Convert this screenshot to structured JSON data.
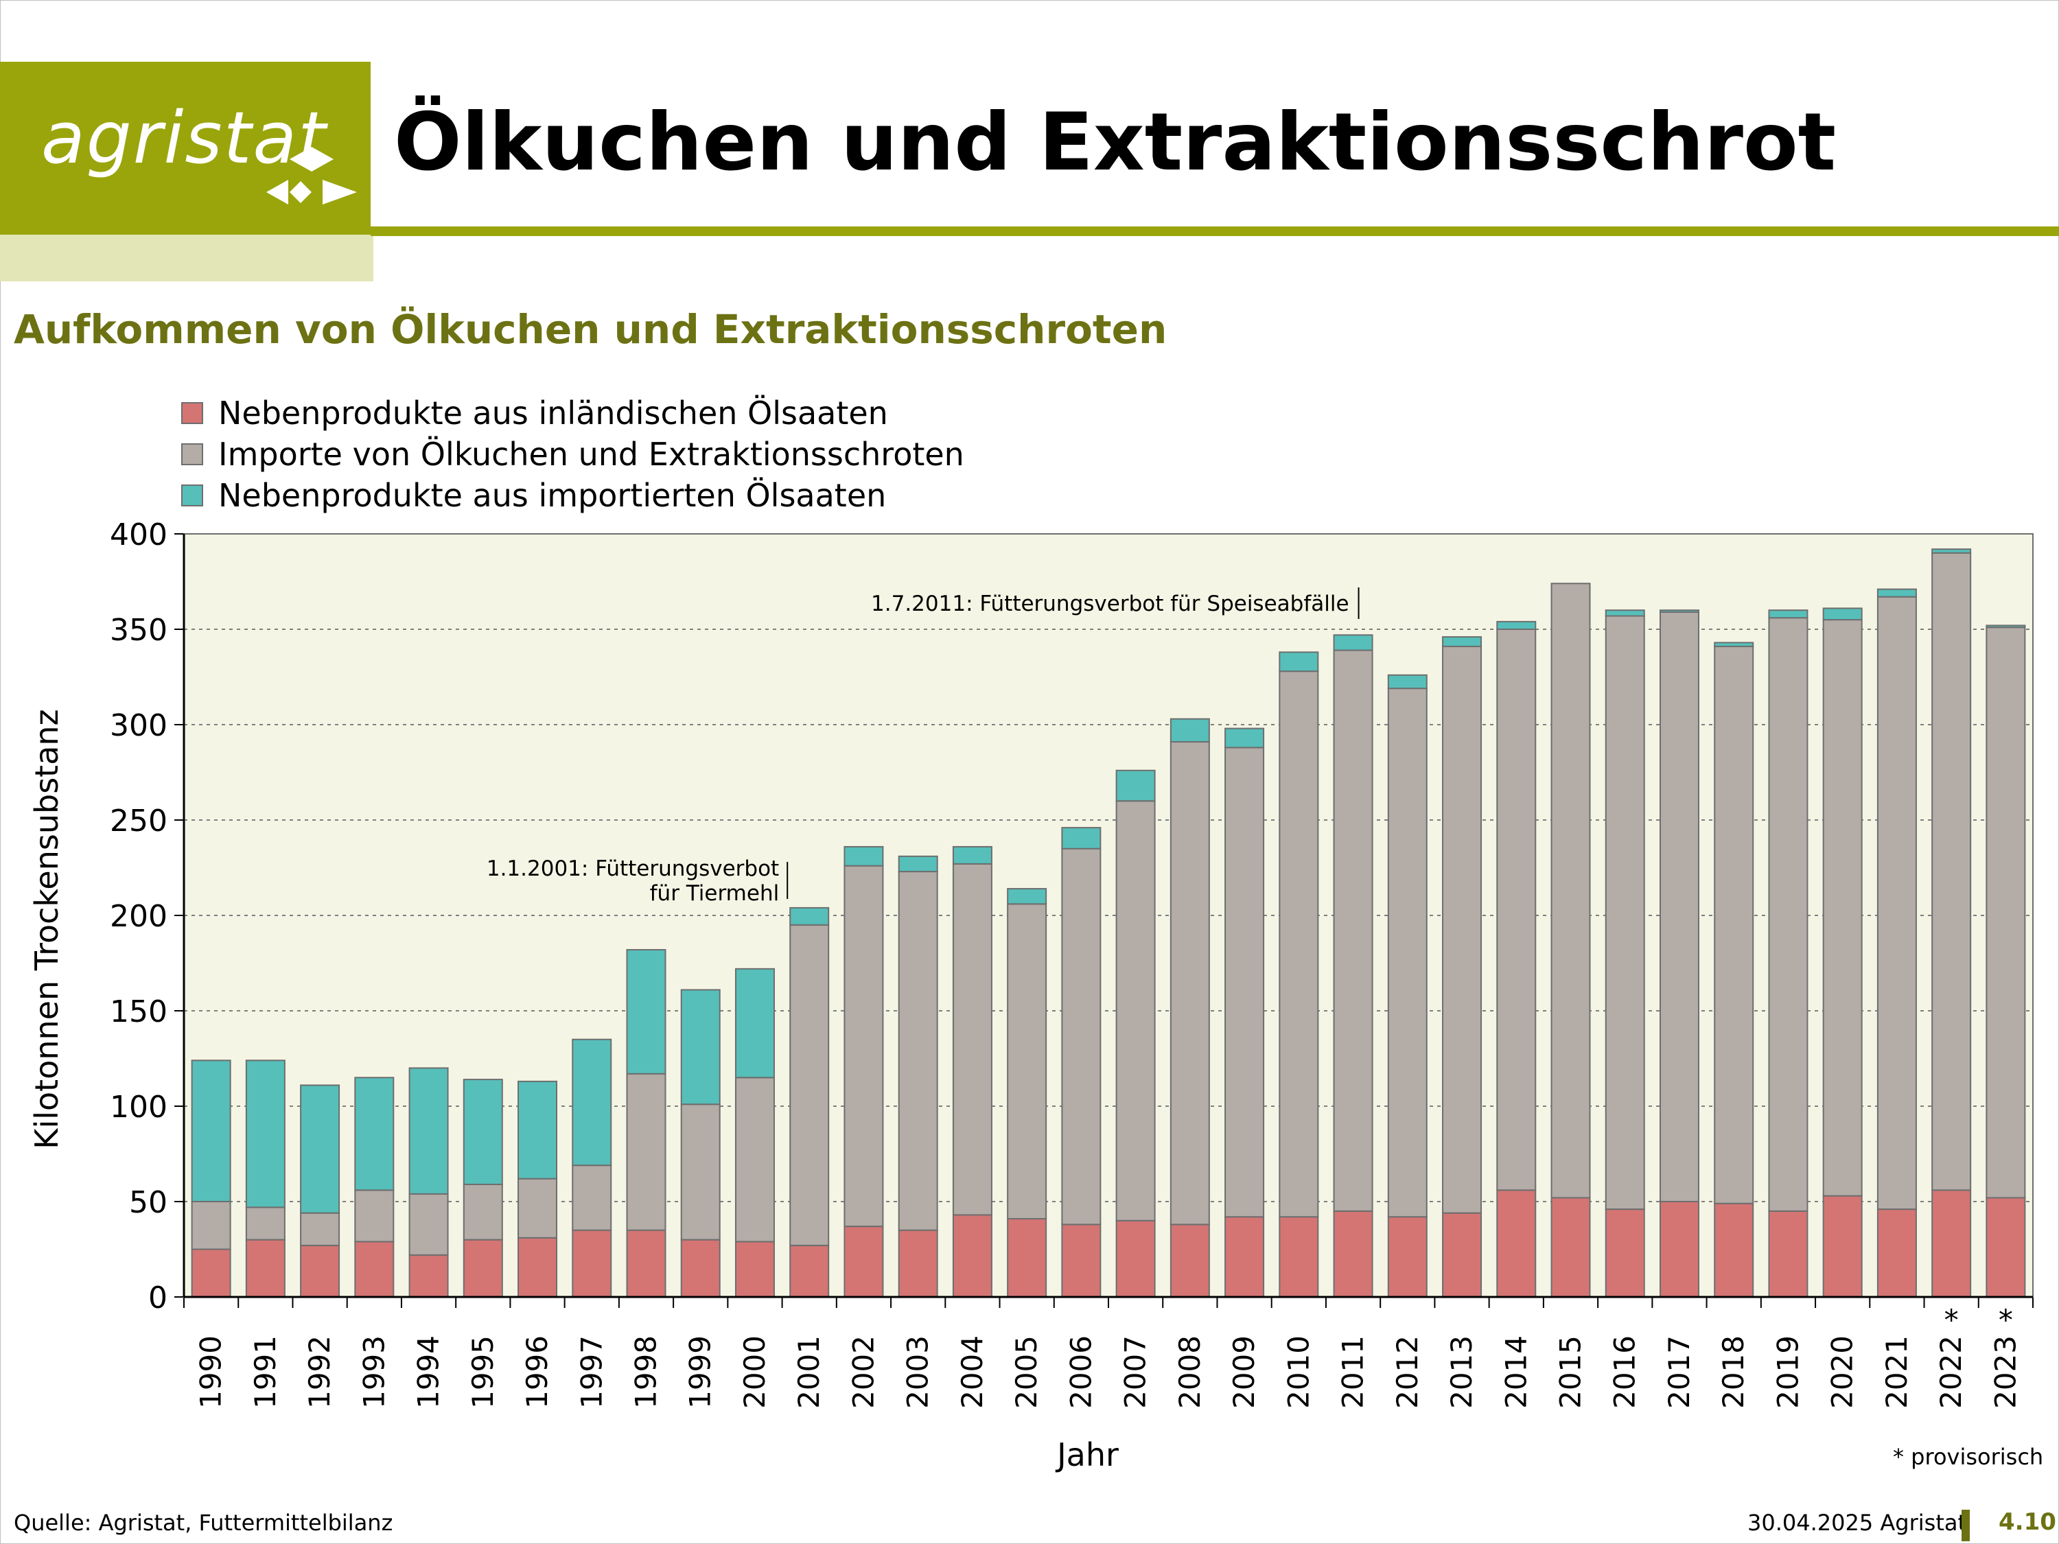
{
  "header": {
    "logo_text": "agristat",
    "title": "Ölkuchen und Extraktionsschrot"
  },
  "subtitle": "Aufkommen von Ölkuchen und Extraktionsschroten",
  "footer": {
    "source": "Quelle: Agristat, Futtermittelbilanz",
    "date_org": "30.04.2025 Agristat",
    "page": "4.10",
    "footnote": "* provisorisch"
  },
  "colors": {
    "brand_olive": "#9aa50b",
    "brand_light": "#e3e6b6",
    "plot_bg": "#f4f5e4",
    "inland": "#d47574",
    "imports": "#b3aca7",
    "imported_seeds": "#56bfba"
  },
  "chart_data": {
    "type": "bar",
    "stacked": true,
    "xlabel": "Jahr",
    "ylabel": "Kilotonnen Trockensubstanz",
    "ylim": [
      0,
      400
    ],
    "yticks": [
      0,
      50,
      100,
      150,
      200,
      250,
      300,
      350,
      400
    ],
    "grid": "horizontal dotted",
    "legend_position": "top-left",
    "categories": [
      "1990",
      "1991",
      "1992",
      "1993",
      "1994",
      "1995",
      "1996",
      "1997",
      "1998",
      "1999",
      "2000",
      "2001",
      "2002",
      "2003",
      "2004",
      "2005",
      "2006",
      "2007",
      "2008",
      "2009",
      "2010",
      "2011",
      "2012",
      "2013",
      "2014",
      "2015",
      "2016",
      "2017",
      "2018",
      "2019",
      "2020",
      "2021",
      "2022",
      "2023"
    ],
    "provisional_marks": [
      "",
      "",
      "",
      "",
      "",
      "",
      "",
      "",
      "",
      "",
      "",
      "",
      "",
      "",
      "",
      "",
      "",
      "",
      "",
      "",
      "",
      "",
      "",
      "",
      "",
      "",
      "",
      "",
      "",
      "",
      "",
      "",
      "*",
      "*"
    ],
    "series": [
      {
        "name": "Nebenprodukte aus inländischen Ölsaaten",
        "color": "#d47574",
        "values": [
          25,
          30,
          27,
          29,
          22,
          30,
          31,
          35,
          35,
          30,
          29,
          27,
          37,
          35,
          43,
          41,
          38,
          40,
          38,
          42,
          42,
          45,
          42,
          44,
          56,
          52,
          46,
          50,
          49,
          45,
          53,
          46,
          56,
          52
        ]
      },
      {
        "name": "Importe von Ölkuchen und Extraktionsschroten",
        "color": "#b3aca7",
        "values": [
          25,
          17,
          17,
          27,
          32,
          29,
          31,
          34,
          82,
          71,
          86,
          168,
          189,
          188,
          184,
          165,
          197,
          220,
          253,
          246,
          286,
          294,
          277,
          297,
          294,
          322,
          311,
          309,
          292,
          311,
          302,
          321,
          334,
          299
        ]
      },
      {
        "name": "Nebenprodukte aus importierten Ölsaaten",
        "color": "#56bfba",
        "values": [
          74,
          77,
          67,
          59,
          66,
          55,
          51,
          66,
          65,
          60,
          57,
          9,
          10,
          8,
          9,
          8,
          11,
          16,
          12,
          10,
          10,
          8,
          7,
          5,
          4,
          0,
          3,
          1,
          2,
          4,
          6,
          4,
          2,
          1
        ]
      }
    ],
    "annotations": [
      {
        "text_lines": [
          "1.1.2001: Fütterungsverbot",
          "für Tiermehl"
        ],
        "year": "2001"
      },
      {
        "text_lines": [
          "1.7.2011: Fütterungsverbot für Speiseabfälle"
        ],
        "year": "2011"
      }
    ]
  }
}
